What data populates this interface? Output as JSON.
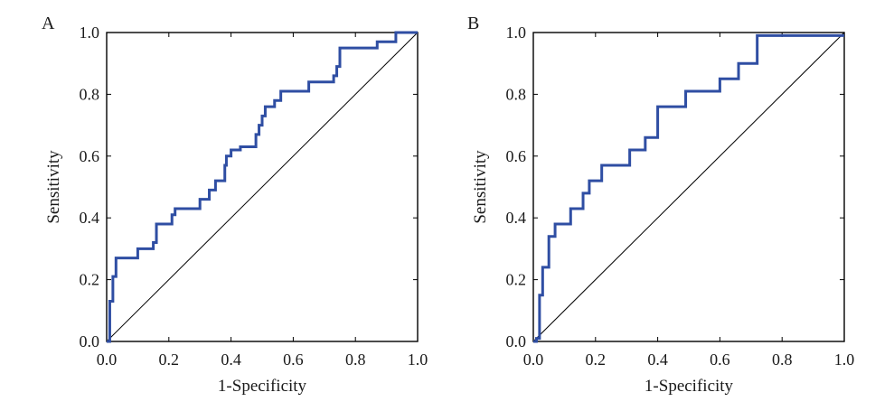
{
  "chart_data": [
    {
      "type": "line",
      "panel": "A",
      "xlabel": "1-Specificity",
      "ylabel": "Sensitivity",
      "xlim": [
        0,
        1
      ],
      "ylim": [
        0,
        1
      ],
      "xticks": [
        "0.0",
        "0.2",
        "0.4",
        "0.6",
        "0.8",
        "1.0"
      ],
      "yticks": [
        "0.0",
        "0.2",
        "0.4",
        "0.6",
        "0.8",
        "1.0"
      ],
      "grid": false,
      "series_color": "#2f4ea3",
      "reference_line": [
        [
          0,
          0
        ],
        [
          1,
          1
        ]
      ],
      "series": [
        {
          "x": [
            0.0,
            0.01,
            0.01,
            0.02,
            0.02,
            0.03,
            0.03,
            0.1,
            0.1,
            0.15,
            0.15,
            0.16,
            0.16,
            0.21,
            0.21,
            0.22,
            0.22,
            0.3,
            0.3,
            0.33,
            0.33,
            0.35,
            0.35,
            0.38,
            0.38,
            0.385,
            0.385,
            0.4,
            0.4,
            0.43,
            0.43,
            0.48,
            0.48,
            0.49,
            0.49,
            0.5,
            0.5,
            0.51,
            0.51,
            0.54,
            0.54,
            0.56,
            0.56,
            0.65,
            0.65,
            0.73,
            0.73,
            0.74,
            0.74,
            0.75,
            0.75,
            0.87,
            0.87,
            0.93,
            0.93,
            0.97,
            1.0
          ],
          "y": [
            0.0,
            0.0,
            0.13,
            0.13,
            0.21,
            0.21,
            0.27,
            0.27,
            0.3,
            0.3,
            0.32,
            0.32,
            0.38,
            0.38,
            0.41,
            0.41,
            0.43,
            0.43,
            0.46,
            0.46,
            0.49,
            0.49,
            0.52,
            0.52,
            0.57,
            0.57,
            0.6,
            0.6,
            0.62,
            0.62,
            0.63,
            0.63,
            0.67,
            0.67,
            0.7,
            0.7,
            0.73,
            0.73,
            0.76,
            0.76,
            0.78,
            0.78,
            0.81,
            0.81,
            0.84,
            0.84,
            0.86,
            0.86,
            0.89,
            0.89,
            0.95,
            0.95,
            0.97,
            0.97,
            1.0,
            1.0,
            1.0
          ]
        }
      ]
    },
    {
      "type": "line",
      "panel": "B",
      "xlabel": "1-Specificity",
      "ylabel": "Sensitivity",
      "xlim": [
        0,
        1
      ],
      "ylim": [
        0,
        1
      ],
      "xticks": [
        "0.0",
        "0.2",
        "0.4",
        "0.6",
        "0.8",
        "1.0"
      ],
      "yticks": [
        "0.0",
        "0.2",
        "0.4",
        "0.6",
        "0.8",
        "1.0"
      ],
      "grid": false,
      "series_color": "#2f4ea3",
      "reference_line": [
        [
          0,
          0
        ],
        [
          1,
          1
        ]
      ],
      "series": [
        {
          "x": [
            0.0,
            0.01,
            0.01,
            0.02,
            0.02,
            0.03,
            0.03,
            0.05,
            0.05,
            0.07,
            0.07,
            0.12,
            0.12,
            0.16,
            0.16,
            0.18,
            0.18,
            0.22,
            0.22,
            0.31,
            0.31,
            0.36,
            0.36,
            0.4,
            0.4,
            0.49,
            0.49,
            0.6,
            0.6,
            0.66,
            0.66,
            0.72,
            0.72,
            0.76,
            0.76,
            1.0
          ],
          "y": [
            0.0,
            0.0,
            0.01,
            0.01,
            0.15,
            0.15,
            0.24,
            0.24,
            0.34,
            0.34,
            0.38,
            0.38,
            0.43,
            0.43,
            0.48,
            0.48,
            0.52,
            0.52,
            0.57,
            0.57,
            0.62,
            0.62,
            0.66,
            0.66,
            0.76,
            0.76,
            0.81,
            0.81,
            0.85,
            0.85,
            0.9,
            0.9,
            0.99,
            0.99,
            0.99,
            0.99
          ]
        }
      ]
    }
  ]
}
